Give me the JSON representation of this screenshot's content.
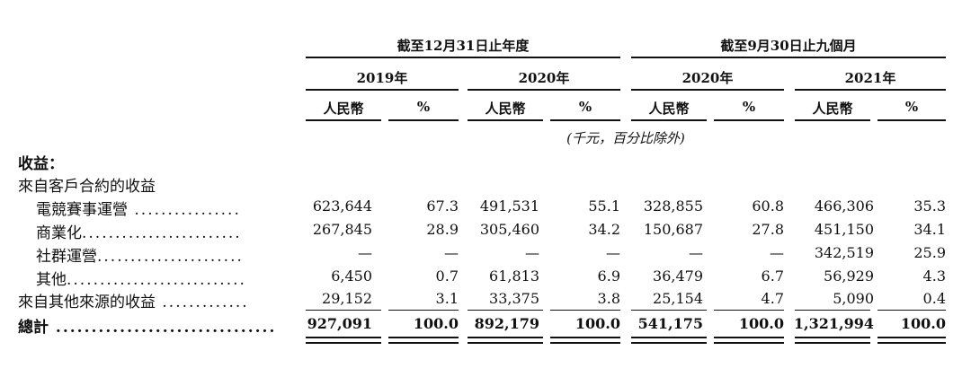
{
  "header": {
    "group1": "截至12月31日止年度",
    "group2": "截至9月30日止九個月",
    "years": [
      "2019年",
      "2020年",
      "2020年",
      "2021年"
    ],
    "col_rmb": "人民幣",
    "col_pct": "%",
    "note": "(千元，百分比除外)"
  },
  "rows": [
    {
      "label": "收益：",
      "bold": true,
      "indent": 0,
      "dots": "",
      "values": []
    },
    {
      "label": "來自客戶合約的收益",
      "bold": false,
      "indent": 0,
      "dots": "",
      "values": []
    },
    {
      "label": "電競賽事運營",
      "bold": false,
      "indent": 1,
      "dots": " ................",
      "values": [
        "623,644",
        "67.3",
        "491,531",
        "55.1",
        "328,855",
        "60.8",
        "466,306",
        "35.3"
      ]
    },
    {
      "label": "商業化",
      "bold": false,
      "indent": 1,
      "dots": "........................",
      "values": [
        "267,845",
        "28.9",
        "305,460",
        "34.2",
        "150,687",
        "27.8",
        "451,150",
        "34.1"
      ]
    },
    {
      "label": "社群運營",
      "bold": false,
      "indent": 1,
      "dots": "......................",
      "values": [
        "—",
        "—",
        "—",
        "—",
        "—",
        "—",
        "342,519",
        "25.9"
      ]
    },
    {
      "label": "其他",
      "bold": false,
      "indent": 1,
      "dots": "...........................",
      "values": [
        "6,450",
        "0.7",
        "61,813",
        "6.9",
        "36,479",
        "6.7",
        "56,929",
        "4.3"
      ]
    },
    {
      "label": "來自其他來源的收益",
      "bold": false,
      "indent": 0,
      "dots": " .............",
      "values": [
        "29,152",
        "3.1",
        "33,375",
        "3.8",
        "25,154",
        "4.7",
        "5,090",
        "0.4"
      ]
    },
    {
      "label": "總計",
      "bold": true,
      "indent": 0,
      "dots": " ...............................",
      "values": [
        "927,091",
        "100.0",
        "892,179",
        "100.0",
        "541,175",
        "100.0",
        "1,321,994",
        "100.0"
      ]
    }
  ]
}
